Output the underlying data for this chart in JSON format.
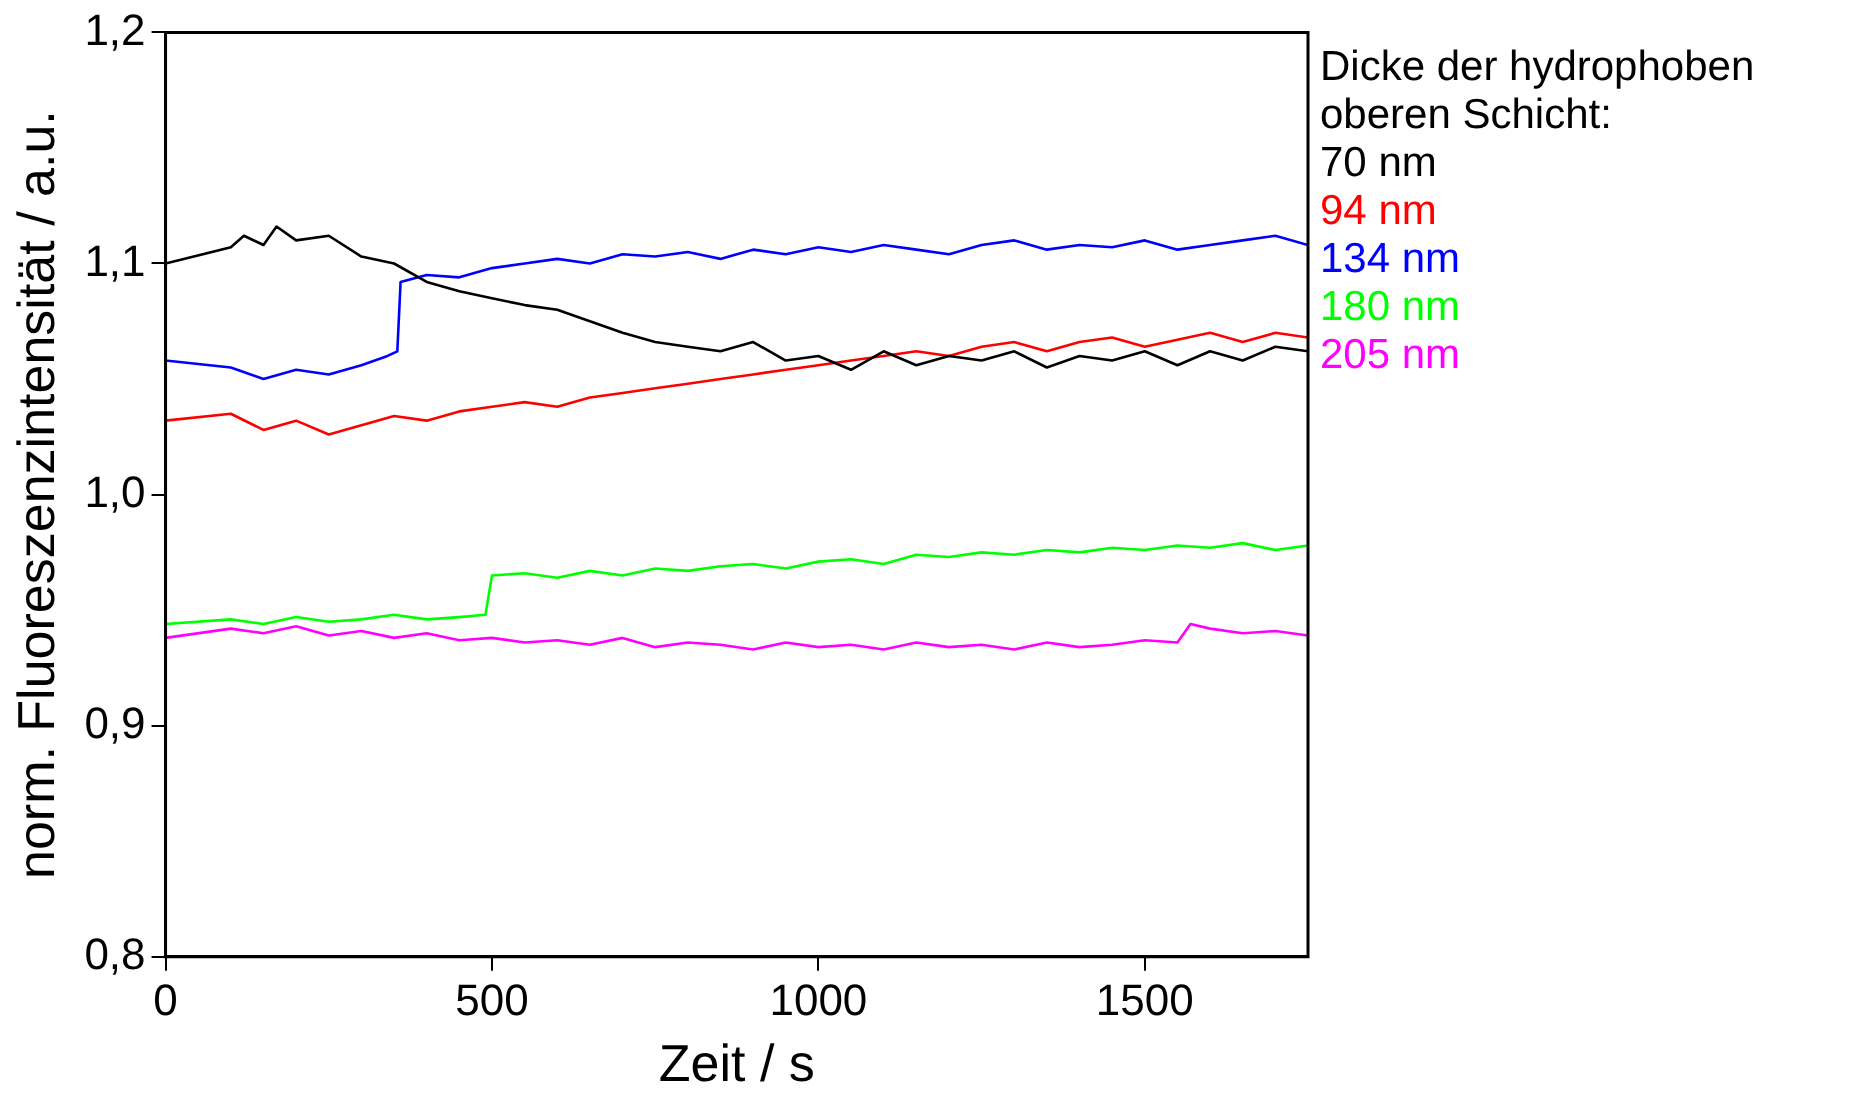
{
  "chart_data": {
    "type": "line",
    "xlabel": "Zeit / s",
    "ylabel": "norm. Fluoreszenzintensität / a.u.",
    "legend_title": "Dicke der hydrophoben oberen Schicht:",
    "legend": "right",
    "grid": false,
    "marker": "none",
    "xlim": [
      0,
      1750
    ],
    "xticks": [
      0,
      500,
      1000,
      1500
    ],
    "ylim": [
      0.8,
      1.2
    ],
    "yticks": [
      {
        "value": 0.8,
        "label": "0,8"
      },
      {
        "value": 0.9,
        "label": "0,9"
      },
      {
        "value": 1.0,
        "label": "1,0"
      },
      {
        "value": 1.1,
        "label": "1,1"
      },
      {
        "value": 1.2,
        "label": "1,2"
      }
    ],
    "series": [
      {
        "name": "70 nm",
        "color": "#000000",
        "x": [
          0,
          100,
          120,
          150,
          170,
          200,
          250,
          300,
          350,
          400,
          450,
          500,
          550,
          600,
          650,
          700,
          750,
          800,
          850,
          900,
          950,
          1000,
          1050,
          1100,
          1150,
          1200,
          1250,
          1300,
          1350,
          1400,
          1450,
          1500,
          1550,
          1600,
          1650,
          1700,
          1750
        ],
        "values": [
          1.1,
          1.107,
          1.112,
          1.108,
          1.116,
          1.11,
          1.112,
          1.103,
          1.1,
          1.092,
          1.088,
          1.085,
          1.082,
          1.08,
          1.075,
          1.07,
          1.066,
          1.064,
          1.062,
          1.066,
          1.058,
          1.06,
          1.054,
          1.062,
          1.056,
          1.06,
          1.058,
          1.062,
          1.055,
          1.06,
          1.058,
          1.062,
          1.056,
          1.062,
          1.058,
          1.064,
          1.062
        ]
      },
      {
        "name": "94 nm",
        "color": "#ff0000",
        "x": [
          0,
          100,
          150,
          200,
          250,
          300,
          350,
          400,
          450,
          500,
          550,
          600,
          650,
          700,
          750,
          800,
          850,
          900,
          950,
          1000,
          1050,
          1100,
          1150,
          1200,
          1250,
          1300,
          1350,
          1400,
          1450,
          1500,
          1550,
          1600,
          1650,
          1700,
          1750
        ],
        "values": [
          1.032,
          1.035,
          1.028,
          1.032,
          1.026,
          1.03,
          1.034,
          1.032,
          1.036,
          1.038,
          1.04,
          1.038,
          1.042,
          1.044,
          1.046,
          1.048,
          1.05,
          1.052,
          1.054,
          1.056,
          1.058,
          1.06,
          1.062,
          1.06,
          1.064,
          1.066,
          1.062,
          1.066,
          1.068,
          1.064,
          1.067,
          1.07,
          1.066,
          1.07,
          1.068
        ]
      },
      {
        "name": "134 nm",
        "color": "#0000ff",
        "x": [
          0,
          100,
          150,
          200,
          250,
          300,
          340,
          355,
          360,
          400,
          450,
          500,
          550,
          600,
          650,
          700,
          750,
          800,
          850,
          900,
          950,
          1000,
          1050,
          1100,
          1150,
          1200,
          1250,
          1300,
          1350,
          1400,
          1450,
          1500,
          1550,
          1600,
          1650,
          1700,
          1750
        ],
        "values": [
          1.058,
          1.055,
          1.05,
          1.054,
          1.052,
          1.056,
          1.06,
          1.062,
          1.092,
          1.095,
          1.094,
          1.098,
          1.1,
          1.102,
          1.1,
          1.104,
          1.103,
          1.105,
          1.102,
          1.106,
          1.104,
          1.107,
          1.105,
          1.108,
          1.106,
          1.104,
          1.108,
          1.11,
          1.106,
          1.108,
          1.107,
          1.11,
          1.106,
          1.108,
          1.11,
          1.112,
          1.108
        ]
      },
      {
        "name": "180 nm",
        "color": "#00ff00",
        "x": [
          0,
          100,
          150,
          200,
          250,
          300,
          350,
          400,
          450,
          490,
          500,
          550,
          600,
          650,
          700,
          750,
          800,
          850,
          900,
          950,
          1000,
          1050,
          1100,
          1150,
          1200,
          1250,
          1300,
          1350,
          1400,
          1450,
          1500,
          1550,
          1600,
          1650,
          1700,
          1750
        ],
        "values": [
          0.944,
          0.946,
          0.944,
          0.947,
          0.945,
          0.946,
          0.948,
          0.946,
          0.947,
          0.948,
          0.965,
          0.966,
          0.964,
          0.967,
          0.965,
          0.968,
          0.967,
          0.969,
          0.97,
          0.968,
          0.971,
          0.972,
          0.97,
          0.974,
          0.973,
          0.975,
          0.974,
          0.976,
          0.975,
          0.977,
          0.976,
          0.978,
          0.977,
          0.979,
          0.976,
          0.978
        ]
      },
      {
        "name": "205 nm",
        "color": "#ff00ff",
        "x": [
          0,
          100,
          150,
          200,
          250,
          300,
          350,
          400,
          450,
          500,
          550,
          600,
          650,
          700,
          750,
          800,
          850,
          900,
          950,
          1000,
          1050,
          1100,
          1150,
          1200,
          1250,
          1300,
          1350,
          1400,
          1450,
          1500,
          1550,
          1570,
          1600,
          1650,
          1700,
          1750
        ],
        "values": [
          0.938,
          0.942,
          0.94,
          0.943,
          0.939,
          0.941,
          0.938,
          0.94,
          0.937,
          0.938,
          0.936,
          0.937,
          0.935,
          0.938,
          0.934,
          0.936,
          0.935,
          0.933,
          0.936,
          0.934,
          0.935,
          0.933,
          0.936,
          0.934,
          0.935,
          0.933,
          0.936,
          0.934,
          0.935,
          0.937,
          0.936,
          0.944,
          0.942,
          0.94,
          0.941,
          0.939
        ]
      }
    ]
  }
}
